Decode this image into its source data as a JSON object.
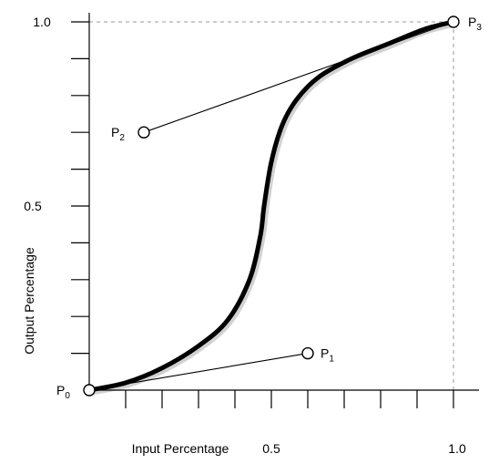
{
  "chart_data": {
    "type": "line",
    "title": "",
    "xlabel": "Input Percentage",
    "ylabel": "Output Percentage",
    "xlim": [
      0,
      1
    ],
    "ylim": [
      0,
      1
    ],
    "x_tick_labels": [
      "0.5",
      "1.0"
    ],
    "y_tick_labels": [
      "1.0",
      "0.5"
    ],
    "x_tick_count": 10,
    "y_tick_count": 10,
    "grid": false,
    "control_points": [
      {
        "name": "P",
        "sub": "0",
        "x": 0.0,
        "y": 0.0
      },
      {
        "name": "P",
        "sub": "1",
        "x": 0.6,
        "y": 0.1
      },
      {
        "name": "P",
        "sub": "2",
        "x": 0.15,
        "y": 0.7
      },
      {
        "name": "P",
        "sub": "3",
        "x": 1.0,
        "y": 1.0
      }
    ],
    "curve_points": [
      [
        0.0,
        0.0
      ],
      [
        0.1,
        0.02
      ],
      [
        0.2,
        0.06
      ],
      [
        0.3,
        0.12
      ],
      [
        0.38,
        0.19
      ],
      [
        0.44,
        0.3
      ],
      [
        0.47,
        0.42
      ],
      [
        0.48,
        0.5
      ],
      [
        0.5,
        0.62
      ],
      [
        0.53,
        0.72
      ],
      [
        0.57,
        0.79
      ],
      [
        0.63,
        0.85
      ],
      [
        0.72,
        0.9
      ],
      [
        0.82,
        0.94
      ],
      [
        0.92,
        0.98
      ],
      [
        1.0,
        1.0
      ]
    ]
  }
}
